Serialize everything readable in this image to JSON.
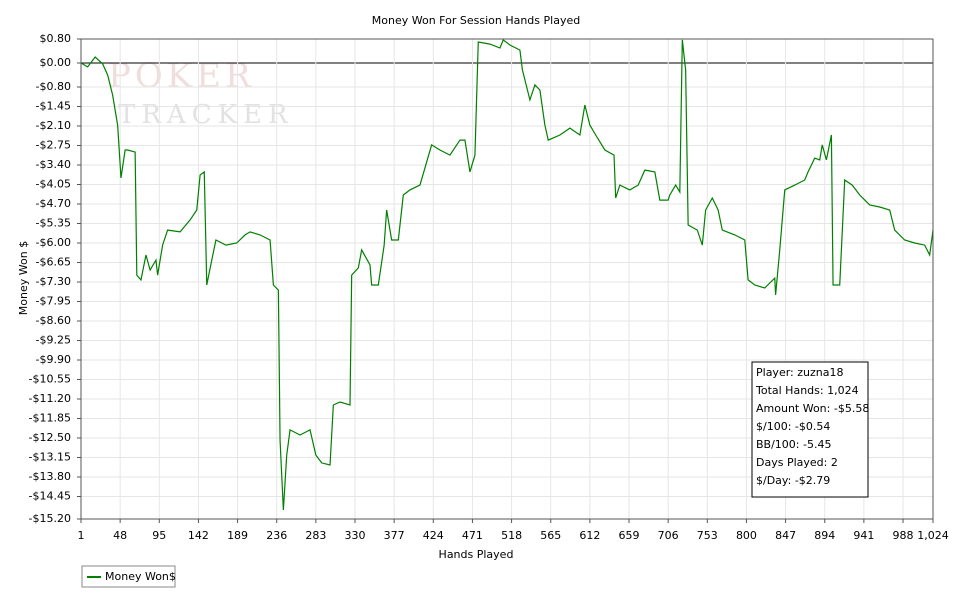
{
  "chart_data": {
    "type": "line",
    "title": "Money Won For Session Hands Played",
    "xlabel": "Hands Played",
    "ylabel": "Money Won $",
    "watermark": [
      "POKER",
      "TRACKER"
    ],
    "annotations": [
      "Player: zuzna18",
      "Total Hands: 1,024",
      "Amount Won: -$5.58",
      "$/100: -$0.54",
      "BB/100: -5.45",
      "Days Played: 2",
      "$/Day: -$2.79"
    ],
    "grid": true,
    "legend": "bottom-left",
    "xlim": [
      1,
      1024
    ],
    "ylim": [
      -15.2,
      0.8
    ],
    "xticks": [
      1,
      48,
      95,
      142,
      189,
      236,
      283,
      330,
      377,
      424,
      471,
      518,
      565,
      612,
      659,
      706,
      753,
      800,
      847,
      894,
      941,
      988,
      {
        "value": 1024,
        "label": "1,024"
      }
    ],
    "yticks": [
      {
        "value": 0.8,
        "label": "$0.80"
      },
      {
        "value": 0,
        "label": "$0.00"
      },
      {
        "value": -0.8,
        "label": "-$0.80"
      },
      {
        "value": -1.45,
        "label": "-$1.45"
      },
      {
        "value": -2.1,
        "label": "-$2.10"
      },
      {
        "value": -2.75,
        "label": "-$2.75"
      },
      {
        "value": -3.4,
        "label": "-$3.40"
      },
      {
        "value": -4.05,
        "label": "-$4.05"
      },
      {
        "value": -4.7,
        "label": "-$4.70"
      },
      {
        "value": -5.35,
        "label": "-$5.35"
      },
      {
        "value": -6,
        "label": "-$6.00"
      },
      {
        "value": -6.65,
        "label": "-$6.65"
      },
      {
        "value": -7.3,
        "label": "-$7.30"
      },
      {
        "value": -7.95,
        "label": "-$7.95"
      },
      {
        "value": -8.6,
        "label": "-$8.60"
      },
      {
        "value": -9.25,
        "label": "-$9.25"
      },
      {
        "value": -9.9,
        "label": "-$9.90"
      },
      {
        "value": -10.55,
        "label": "-$10.55"
      },
      {
        "value": -11.2,
        "label": "-$11.20"
      },
      {
        "value": -11.85,
        "label": "-$11.85"
      },
      {
        "value": -12.5,
        "label": "-$12.50"
      },
      {
        "value": -13.15,
        "label": "-$13.15"
      },
      {
        "value": -13.8,
        "label": "-$13.80"
      },
      {
        "value": -14.45,
        "label": "-$14.45"
      },
      {
        "value": -15.2,
        "label": "-$15.20"
      }
    ],
    "x": [
      1,
      9,
      18,
      27,
      33,
      39,
      45,
      49,
      54,
      57,
      66,
      68,
      73,
      79,
      84,
      91,
      93,
      99,
      105,
      120,
      132,
      140,
      144,
      149,
      152,
      158,
      163,
      175,
      188,
      198,
      204,
      216,
      228,
      232,
      238,
      240,
      244,
      248,
      252,
      264,
      276,
      283,
      290,
      300,
      304,
      312,
      324,
      326,
      334,
      338,
      348,
      350,
      358,
      365,
      368,
      374,
      382,
      388,
      396,
      408,
      422,
      432,
      444,
      456,
      462,
      468,
      474,
      478,
      492,
      504,
      508,
      516,
      528,
      531,
      540,
      546,
      552,
      558,
      562,
      576,
      588,
      600,
      606,
      612,
      619,
      630,
      641,
      643,
      648,
      660,
      670,
      678,
      690,
      696,
      706,
      708,
      715,
      720,
      723,
      727,
      730,
      741,
      747,
      751,
      759,
      766,
      771,
      786,
      798,
      802,
      810,
      822,
      834,
      835,
      840,
      846,
      858,
      870,
      874,
      882,
      888,
      891,
      896,
      902,
      904,
      912,
      918,
      927,
      936,
      948,
      960,
      972,
      978,
      990,
      1002,
      1014,
      1020,
      1024
    ],
    "series": [
      {
        "name": "Money Won$",
        "color": "#008000",
        "values": [
          0,
          -0.13,
          0.2,
          -0.03,
          -0.4,
          -1.07,
          -2.07,
          -3.83,
          -2.9,
          -2.9,
          -2.97,
          -7.07,
          -7.23,
          -6.4,
          -6.9,
          -6.57,
          -7.07,
          -6.07,
          -5.57,
          -5.63,
          -5.23,
          -4.9,
          -3.73,
          -3.63,
          -7.4,
          -6.57,
          -5.9,
          -6.07,
          -6.0,
          -5.73,
          -5.63,
          -5.73,
          -5.9,
          -7.4,
          -7.57,
          -12.57,
          -14.9,
          -13.07,
          -12.23,
          -12.4,
          -12.23,
          -13.07,
          -13.33,
          -13.4,
          -11.4,
          -11.3,
          -11.4,
          -7.07,
          -6.83,
          -6.23,
          -6.73,
          -7.4,
          -7.4,
          -6.07,
          -4.9,
          -5.9,
          -5.9,
          -4.4,
          -4.23,
          -4.07,
          -2.73,
          -2.9,
          -3.07,
          -2.57,
          -2.57,
          -3.63,
          -3.07,
          0.7,
          0.63,
          0.5,
          0.77,
          0.6,
          0.43,
          -0.23,
          -1.23,
          -0.73,
          -0.9,
          -2.07,
          -2.57,
          -2.4,
          -2.17,
          -2.4,
          -1.4,
          -2.07,
          -2.4,
          -2.9,
          -3.07,
          -4.5,
          -4.07,
          -4.23,
          -4.07,
          -3.57,
          -3.63,
          -4.57,
          -4.57,
          -4.4,
          -4.07,
          -4.3,
          0.77,
          -0.23,
          -5.4,
          -5.57,
          -6.07,
          -4.9,
          -4.5,
          -4.9,
          -5.57,
          -5.73,
          -5.9,
          -7.23,
          -7.4,
          -7.5,
          -7.17,
          -7.73,
          -6.23,
          -4.23,
          -4.07,
          -3.9,
          -3.63,
          -3.17,
          -3.23,
          -2.73,
          -3.23,
          -2.4,
          -7.4,
          -7.4,
          -3.9,
          -4.07,
          -4.4,
          -4.73,
          -4.8,
          -4.9,
          -5.57,
          -5.9,
          -6.0,
          -6.07,
          -6.4,
          -5.57
        ]
      }
    ]
  }
}
